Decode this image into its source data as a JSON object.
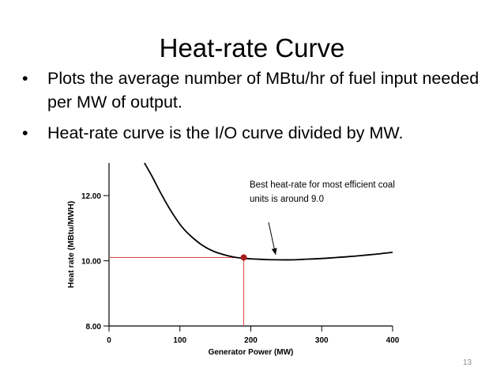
{
  "slide": {
    "title": "Heat-rate Curve",
    "bullets": [
      "Plots the average number of MBtu/hr of fuel input needed per MW of output.",
      "Heat-rate curve is the I/O curve divided by MW."
    ],
    "bullet_symbol": "•",
    "slide_number": "13"
  },
  "chart_data": {
    "type": "line",
    "title": "",
    "xlabel": "Generator Power (MW)",
    "ylabel": "Heat rate (MBtu/MWH)",
    "xlim": [
      0,
      400
    ],
    "ylim": [
      8,
      13
    ],
    "x_ticks": [
      0,
      100,
      200,
      300,
      400
    ],
    "x_tick_labels": [
      "0",
      "100",
      "200",
      "300",
      "400"
    ],
    "y_ticks": [
      8,
      10,
      12
    ],
    "y_tick_labels": [
      "8.00",
      "10.00",
      "12.00"
    ],
    "series": [
      {
        "name": "Heat-rate curve",
        "color": "#000000",
        "x": [
          50,
          60,
          70,
          80,
          90,
          100,
          110,
          120,
          130,
          140,
          150,
          160,
          170,
          180,
          190,
          200,
          220,
          240,
          260,
          280,
          300,
          320,
          340,
          360,
          380,
          400
        ],
        "y": [
          13.0,
          12.62,
          12.2,
          11.8,
          11.44,
          11.12,
          10.87,
          10.67,
          10.5,
          10.37,
          10.27,
          10.2,
          10.14,
          10.1,
          10.08,
          10.06,
          10.04,
          10.03,
          10.03,
          10.05,
          10.07,
          10.1,
          10.13,
          10.17,
          10.21,
          10.26
        ]
      }
    ],
    "highlight_point": {
      "x": 190,
      "y": 10.1,
      "color": "#a51d1d"
    },
    "guide_color": "#e04848",
    "annotation": {
      "text_lines": [
        "Best heat-rate for most efficient coal",
        "units is around 9.0"
      ],
      "arrow_to": {
        "x": 235,
        "y": 10.04
      }
    }
  }
}
